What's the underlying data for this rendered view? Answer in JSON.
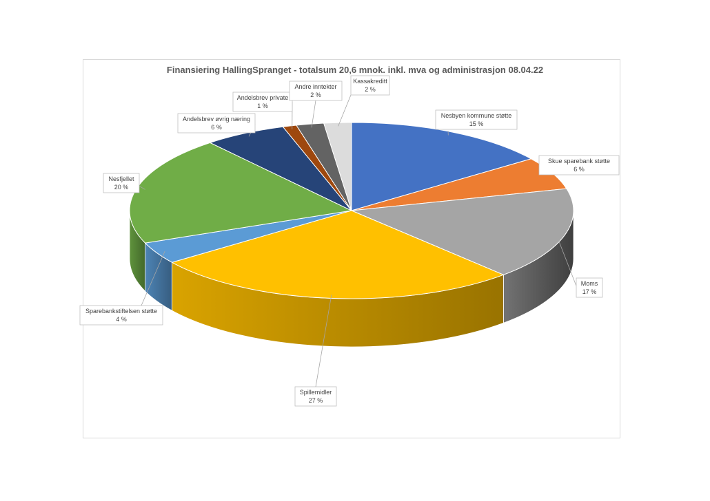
{
  "chart_data": {
    "type": "pie",
    "title": "Finansiering HallingSpranget - totalsum 20,6 mnok. inkl. mva og administrasjon 08.04.22",
    "slices": [
      {
        "label": "Nesbyen kommune støtte",
        "value": 15,
        "value_label": "15 %",
        "color": "#4472c4"
      },
      {
        "label": "Skue sparebank støtte",
        "value": 6,
        "value_label": "6 %",
        "color": "#ed7d31"
      },
      {
        "label": "Moms",
        "value": 17,
        "value_label": "17 %",
        "color": "#a5a5a5"
      },
      {
        "label": "Spillemidler",
        "value": 27,
        "value_label": "27 %",
        "color": "#ffc000"
      },
      {
        "label": "Sparebankstiftelsen støtte",
        "value": 4,
        "value_label": "4 %",
        "color": "#5b9bd5"
      },
      {
        "label": "Nesfjellet",
        "value": 20,
        "value_label": "20 %",
        "color": "#70ad47"
      },
      {
        "label": "Andelsbrev øvrig næring",
        "value": 6,
        "value_label": "6 %",
        "color": "#264478"
      },
      {
        "label": "Andelsbrev private",
        "value": 1,
        "value_label": "1 %",
        "color": "#9e480e"
      },
      {
        "label": "Andre inntekter",
        "value": 2,
        "value_label": "2 %",
        "color": "#636363"
      },
      {
        "label": "Kassakreditt",
        "value": 2,
        "value_label": "2 %",
        "color": "#dcdcdc"
      }
    ],
    "start": "12 o'clock, clockwise",
    "legend": "none (callout labels)"
  }
}
